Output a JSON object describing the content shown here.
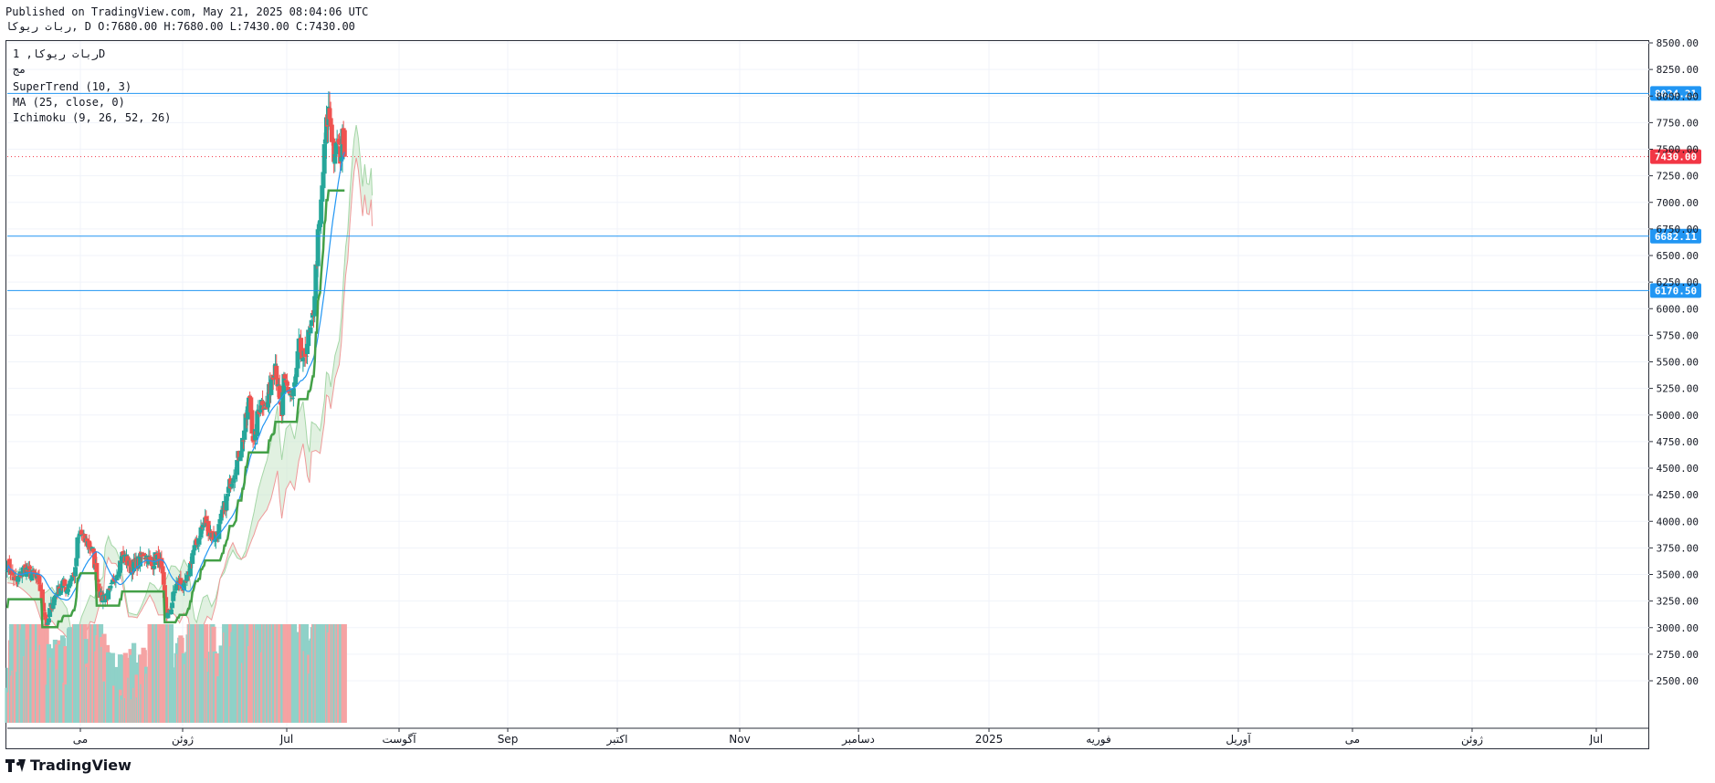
{
  "header": {
    "line1": "Published on TradingView.com, May 21, 2025 08:04:06 UTC",
    "line2": "ربات ریوکا, D O:7680.00 H:7680.00 L:7430.00 C:7430.00"
  },
  "legend": {
    "symbol": "ربات ریوکا, 1D",
    "exchange": "مج",
    "supertrend": "SuperTrend (10, 3)",
    "ma": "MA (25, close, 0)",
    "ichimoku": "Ichimoku (9, 26, 52, 26)"
  },
  "footer": {
    "brand": "TradingView"
  },
  "colors": {
    "up": "#26a69a",
    "down": "#ef5350",
    "ma": "#2196f3",
    "supertrend_up": "#43a047",
    "supertrend_down": "#a04545",
    "cloud_bull": "#c8e6c9",
    "cloud_bear": "#f8cdcd",
    "hline": "#2196f3",
    "last_price": "#f23645"
  },
  "chart_data": {
    "type": "candlestick",
    "y_axis_range": [
      2400,
      8550
    ],
    "y_ticks": [
      "2500.00",
      "2750.00",
      "3000.00",
      "3250.00",
      "3500.00",
      "3750.00",
      "4000.00",
      "4250.00",
      "4500.00",
      "4750.00",
      "5000.00",
      "5250.00",
      "5500.00",
      "5750.00",
      "6000.00",
      "6250.00",
      "6500.00",
      "6750.00",
      "7000.00",
      "7250.00",
      "7500.00",
      "7750.00",
      "8000.00",
      "8250.00",
      "8500.00"
    ],
    "x_ticks": [
      "می",
      "ژوئن",
      "Jul",
      "آگوست",
      "Sep",
      "اکتبر",
      "Nov",
      "دسامبر",
      "2025",
      "فوریه",
      "آوریل",
      "می",
      "ژوئن",
      "Jul"
    ],
    "horizontal_lines": [
      {
        "value": 8024.21,
        "label": "8024.21"
      },
      {
        "value": 6682.11,
        "label": "6682.11"
      },
      {
        "value": 6170.5,
        "label": "6170.50"
      }
    ],
    "last_price": {
      "value": 7430.0,
      "label": "7430.00"
    },
    "last_ohlc": {
      "open": 7680.0,
      "high": 7680.0,
      "low": 7430.0,
      "close": 7430.0
    },
    "close_path": [
      [
        0,
        3600
      ],
      [
        8,
        3420
      ],
      [
        16,
        3560
      ],
      [
        20,
        3520
      ],
      [
        26,
        3480
      ],
      [
        30,
        3420
      ],
      [
        33,
        3250
      ],
      [
        36,
        3080
      ],
      [
        38,
        3000
      ],
      [
        40,
        3160
      ],
      [
        44,
        3280
      ],
      [
        48,
        3350
      ],
      [
        52,
        3420
      ],
      [
        56,
        3360
      ],
      [
        60,
        3480
      ],
      [
        64,
        3520
      ],
      [
        66,
        3800
      ],
      [
        69,
        3900
      ],
      [
        72,
        3820
      ],
      [
        76,
        3800
      ],
      [
        80,
        3720
      ],
      [
        84,
        3500
      ],
      [
        86,
        3380
      ],
      [
        88,
        3280
      ],
      [
        92,
        3300
      ],
      [
        96,
        3320
      ],
      [
        100,
        3430
      ],
      [
        104,
        3550
      ],
      [
        108,
        3680
      ],
      [
        112,
        3640
      ],
      [
        116,
        3560
      ],
      [
        120,
        3600
      ],
      [
        124,
        3620
      ],
      [
        128,
        3700
      ],
      [
        132,
        3660
      ],
      [
        136,
        3580
      ],
      [
        140,
        3680
      ],
      [
        144,
        3600
      ],
      [
        146,
        3450
      ],
      [
        148,
        3250
      ],
      [
        150,
        3130
      ],
      [
        152,
        3100
      ],
      [
        154,
        3200
      ],
      [
        158,
        3380
      ],
      [
        162,
        3440
      ],
      [
        166,
        3360
      ],
      [
        170,
        3480
      ],
      [
        174,
        3700
      ],
      [
        178,
        3780
      ],
      [
        182,
        3920
      ],
      [
        186,
        4000
      ],
      [
        190,
        3900
      ],
      [
        194,
        3850
      ],
      [
        198,
        3900
      ],
      [
        202,
        4050
      ],
      [
        206,
        4200
      ],
      [
        210,
        4380
      ],
      [
        214,
        4500
      ],
      [
        218,
        4620
      ],
      [
        222,
        4800
      ],
      [
        226,
        5050
      ],
      [
        228,
        5180
      ],
      [
        230,
        4900
      ],
      [
        232,
        4700
      ],
      [
        236,
        5050
      ],
      [
        240,
        5150
      ],
      [
        244,
        5050
      ],
      [
        248,
        5350
      ],
      [
        252,
        5500
      ],
      [
        254,
        5320
      ],
      [
        256,
        5100
      ],
      [
        258,
        5000
      ],
      [
        260,
        5300
      ],
      [
        264,
        5250
      ],
      [
        268,
        5150
      ],
      [
        272,
        5400
      ],
      [
        274,
        5650
      ],
      [
        276,
        5600
      ],
      [
        278,
        5450
      ],
      [
        282,
        5700
      ],
      [
        286,
        5800
      ],
      [
        288,
        6000
      ],
      [
        290,
        6350
      ],
      [
        292,
        6650
      ],
      [
        294,
        6800
      ],
      [
        296,
        7150
      ],
      [
        298,
        7450
      ],
      [
        300,
        7700
      ],
      [
        302,
        7850
      ],
      [
        304,
        7750
      ],
      [
        306,
        7550
      ],
      [
        308,
        7350
      ],
      [
        310,
        7600
      ],
      [
        312,
        7450
      ],
      [
        314,
        7480
      ],
      [
        316,
        7680
      ],
      [
        317,
        7430
      ]
    ],
    "volume_path": [
      [
        0,
        120
      ],
      [
        10,
        180
      ],
      [
        20,
        160
      ],
      [
        34,
        240
      ],
      [
        40,
        110
      ],
      [
        60,
        130
      ],
      [
        66,
        300
      ],
      [
        72,
        260
      ],
      [
        86,
        150
      ],
      [
        96,
        120
      ],
      [
        100,
        150
      ],
      [
        110,
        100
      ],
      [
        130,
        110
      ],
      [
        140,
        200
      ],
      [
        148,
        240
      ],
      [
        160,
        120
      ],
      [
        170,
        140
      ],
      [
        176,
        620
      ],
      [
        178,
        360
      ],
      [
        190,
        180
      ],
      [
        200,
        150
      ],
      [
        210,
        260
      ],
      [
        214,
        290
      ],
      [
        222,
        210
      ],
      [
        230,
        200
      ],
      [
        236,
        280
      ],
      [
        240,
        220
      ],
      [
        244,
        730
      ],
      [
        252,
        640
      ],
      [
        256,
        260
      ],
      [
        260,
        230
      ],
      [
        270,
        200
      ],
      [
        284,
        180
      ],
      [
        290,
        240
      ],
      [
        296,
        820
      ],
      [
        300,
        400
      ],
      [
        304,
        380
      ],
      [
        310,
        420
      ],
      [
        316,
        380
      ],
      [
        317,
        320
      ]
    ]
  }
}
